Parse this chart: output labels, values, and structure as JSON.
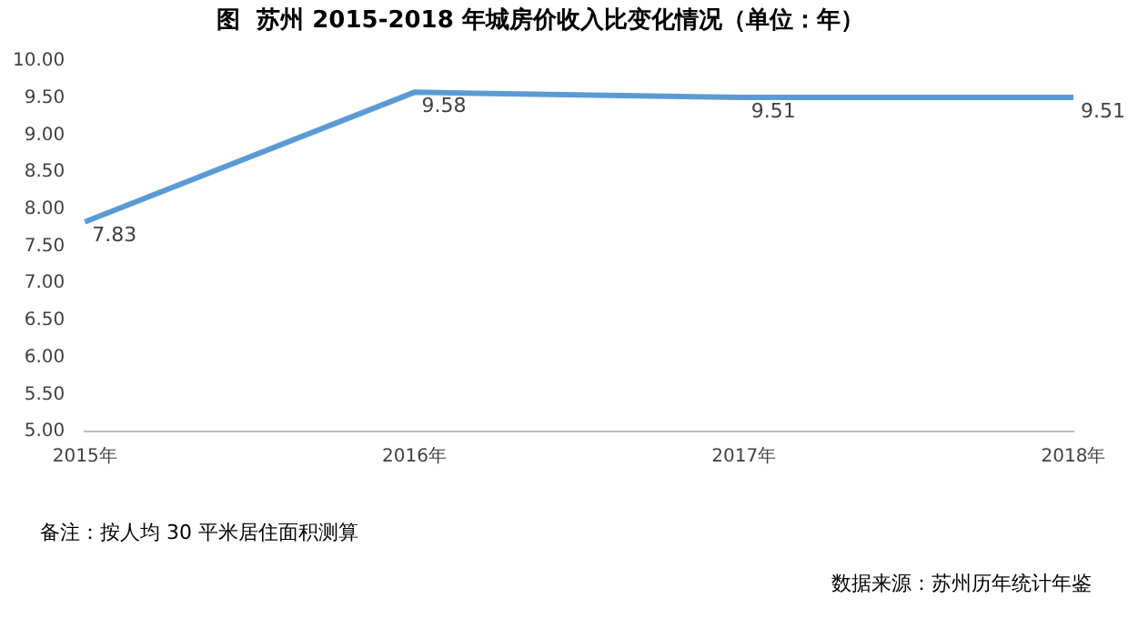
{
  "chart_data": {
    "type": "line",
    "title": "图  苏州 2015-2018 年城房价收入比变化情况（单位：年）",
    "categories": [
      "2015年",
      "2016年",
      "2017年",
      "2018年"
    ],
    "series": [
      {
        "color": "#5b9bd5",
        "values": [
          7.83,
          9.58,
          9.51,
          9.51
        ]
      }
    ],
    "ylim": [
      5,
      10
    ],
    "yticks": [
      {
        "value": 5,
        "label": "5.00"
      },
      {
        "value": 5.5,
        "label": "5.50"
      },
      {
        "value": 6,
        "label": "6.00"
      },
      {
        "value": 6.5,
        "label": "6.50"
      },
      {
        "value": 7,
        "label": "7.00"
      },
      {
        "value": 7.5,
        "label": "7.50"
      },
      {
        "value": 8,
        "label": "8.00"
      },
      {
        "value": 8.5,
        "label": "8.50"
      },
      {
        "value": 9,
        "label": "9.00"
      },
      {
        "value": 9.5,
        "label": "9.50"
      },
      {
        "value": 10,
        "label": "10.00"
      }
    ],
    "grid": false,
    "legend": false,
    "marker": "none",
    "line_style": "solid",
    "data_labels": true,
    "annotations": [
      "备注：按人均 30 平米居住面积测算",
      "数据来源：苏州历年统计年鉴"
    ]
  }
}
